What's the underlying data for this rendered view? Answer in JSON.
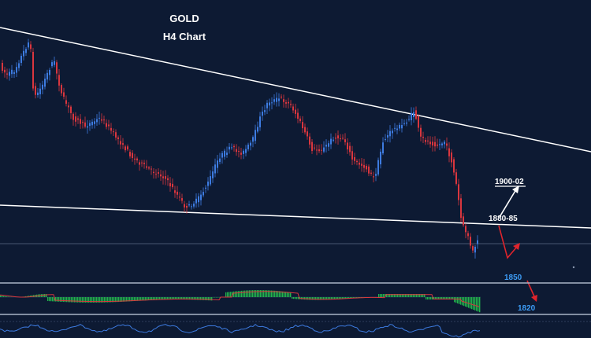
{
  "chart_data": {
    "type": "candlestick",
    "title": "GOLD",
    "subtitle": "H4 Chart",
    "levels": [
      {
        "label": "1900-02"
      },
      {
        "label": "1880-85"
      },
      {
        "label": "1850"
      },
      {
        "label": "1820"
      }
    ],
    "colors": {
      "background": "#0d1a33",
      "up_candle": "#3d7be0",
      "down_candle": "#d9363e",
      "trendline": "#ffffff",
      "arrow_up": "#ffffff",
      "arrow_down": "#e0242c",
      "level_text_white": "#ffffff",
      "level_text_blue": "#3d9cf5",
      "macd_histogram": "#22b24c",
      "macd_signal": "#d9363e",
      "oscillator": "#3d7be0"
    }
  }
}
